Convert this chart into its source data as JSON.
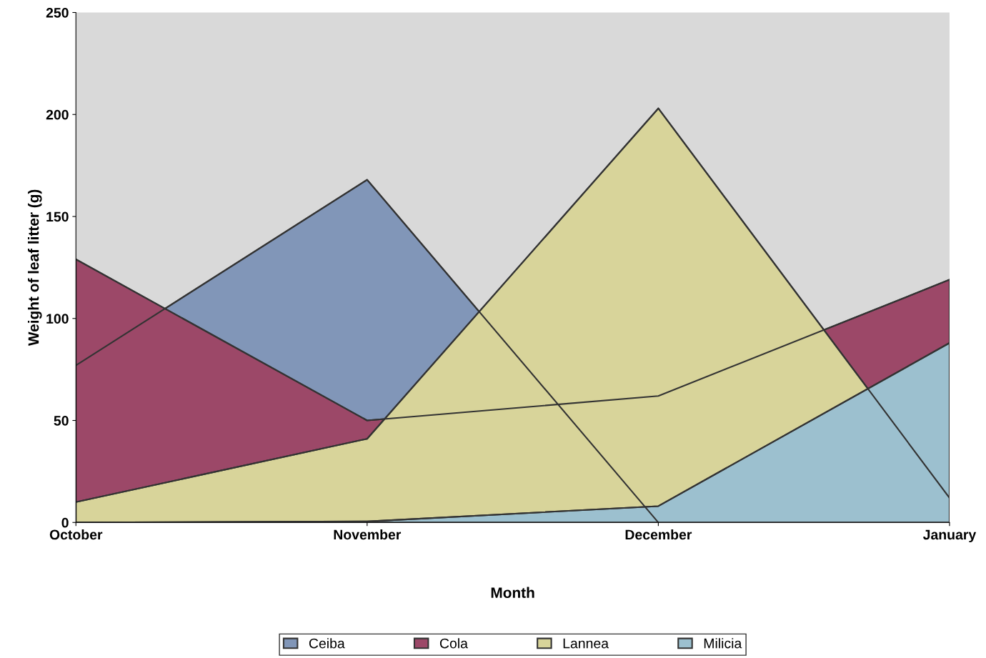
{
  "chart_data": {
    "type": "area",
    "xlabel": "Month",
    "ylabel": "Weight of leaf litter (g)",
    "categories": [
      "October",
      "November",
      "December",
      "January"
    ],
    "series": [
      {
        "name": "Ceiba",
        "color": "#8196b8",
        "values": [
          77,
          168,
          0,
          null
        ]
      },
      {
        "name": "Cola",
        "color": "#9c4868",
        "values": [
          129,
          50,
          62,
          119
        ]
      },
      {
        "name": "Lannea",
        "color": "#d8d49a",
        "values": [
          10,
          41,
          203,
          12
        ]
      },
      {
        "name": "Milicia",
        "color": "#9cc0cf",
        "values": [
          0,
          0.5,
          8,
          88
        ]
      }
    ],
    "ylim": [
      0,
      250
    ],
    "yticks": [
      0,
      50,
      100,
      150,
      200,
      250
    ],
    "grid": false,
    "legend": "bottom"
  }
}
